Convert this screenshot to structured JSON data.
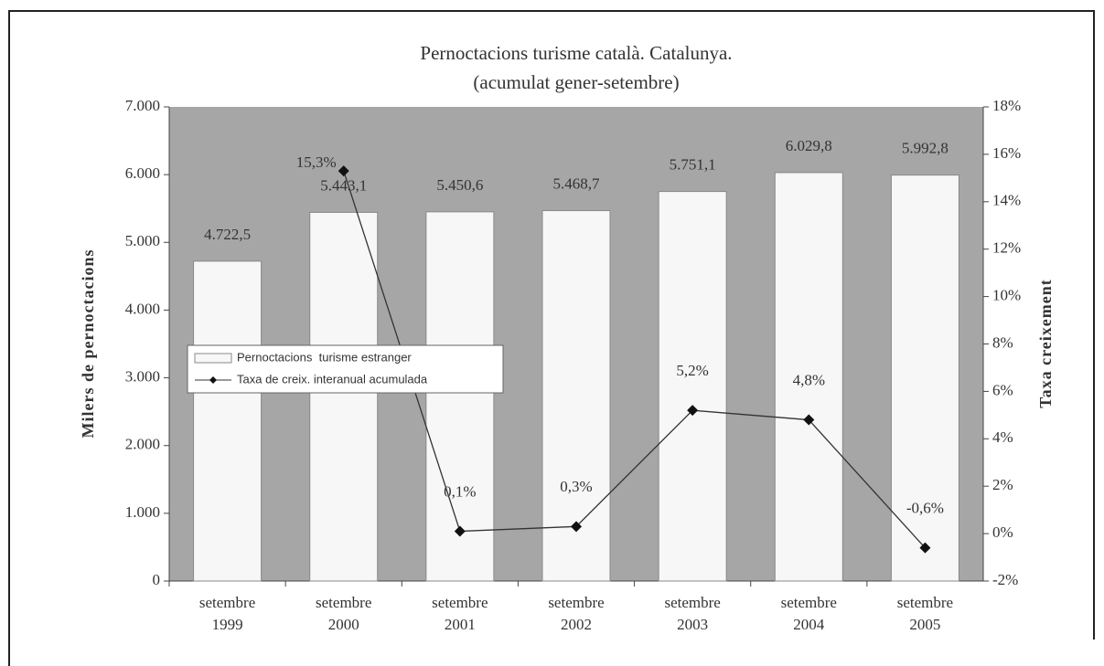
{
  "chart_data": {
    "type": "bar_line",
    "title": "Pernoctacions turisme català. Catalunya.",
    "subtitle": "(acumulat gener-setembre)",
    "y_label": "Milers de pernoctacions",
    "y2_label": "Taxa creixement",
    "categories": [
      "setembre 1999",
      "setembre 2000",
      "setembre 2001",
      "setembre 2002",
      "setembre 2003",
      "setembre 2004",
      "setembre 2005"
    ],
    "series": [
      {
        "name": "Pernoctacions  turisme estranger",
        "type": "bar",
        "color": "#f7f7f7",
        "values": [
          4722.5,
          5443.1,
          5450.6,
          5468.7,
          5751.1,
          6029.8,
          5992.8
        ],
        "value_labels": [
          "4.722,5",
          "5.443,1",
          "5.450,6",
          "5.468,7",
          "5.751,1",
          "6.029,8",
          "5.992,8"
        ]
      },
      {
        "name": "Taxa de creix. interanual acumulada",
        "type": "line",
        "axis": "y2",
        "color": "#333333",
        "values": [
          null,
          15.3,
          0.1,
          0.3,
          5.2,
          4.8,
          -0.6
        ],
        "value_labels": [
          null,
          "15,3%",
          "0,1%",
          "0,3%",
          "5,2%",
          "4,8%",
          "-0,6%"
        ]
      }
    ],
    "ylim": [
      0,
      7000
    ],
    "yticks": [
      0,
      {
        "value": 1000,
        "label": "1.000"
      },
      {
        "value": 2000,
        "label": "2.000"
      },
      {
        "value": 3000,
        "label": "3.000"
      },
      {
        "value": 4000,
        "label": "4.000"
      },
      {
        "value": 5000,
        "label": "5.000"
      },
      {
        "value": 6000,
        "label": "6.000"
      },
      {
        "value": 7000,
        "label": "7.000"
      }
    ],
    "y2lim": [
      -2,
      18
    ],
    "y2ticks": [
      {
        "value": -2,
        "label": "-2%"
      },
      {
        "value": 0,
        "label": "0%"
      },
      {
        "value": 2,
        "label": "2%"
      },
      {
        "value": 4,
        "label": "4%"
      },
      {
        "value": 6,
        "label": "6%"
      },
      {
        "value": 8,
        "label": "8%"
      },
      {
        "value": 10,
        "label": "10%"
      },
      {
        "value": 12,
        "label": "12%"
      },
      {
        "value": 14,
        "label": "14%"
      },
      {
        "value": 16,
        "label": "16%"
      },
      {
        "value": 18,
        "label": "18%"
      }
    ],
    "plot_background": "#a6a6a6"
  }
}
